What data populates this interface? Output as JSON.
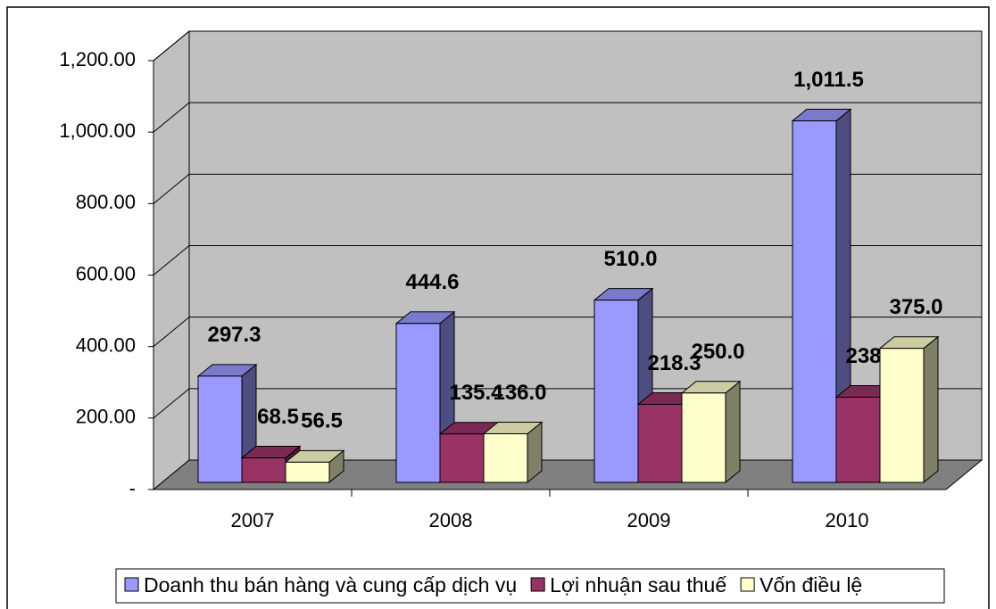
{
  "chart_data": {
    "type": "bar3d",
    "categories": [
      "2007",
      "2008",
      "2009",
      "2010"
    ],
    "series": [
      {
        "name": "Doanh thu bán hàng và cung cấp dịch vụ",
        "color": "#9999ff",
        "values": [
          297.3,
          444.6,
          510.0,
          1011.5
        ],
        "value_labels": [
          "297.3",
          "444.6",
          "510.0",
          "1,011.5"
        ]
      },
      {
        "name": "Lợi nhuận sau thuế",
        "color": "#993366",
        "values": [
          68.5,
          135.4,
          218.3,
          238.4
        ],
        "value_labels": [
          "68.5",
          "135.4",
          "218.3",
          "238.4"
        ]
      },
      {
        "name": "Vốn điều lệ",
        "color": "#ffffcc",
        "values": [
          56.5,
          136.0,
          250.0,
          375.0
        ],
        "value_labels": [
          "56.5",
          "136.0",
          "250.0",
          "375.0"
        ]
      }
    ],
    "ylim": [
      0,
      1200
    ],
    "yticks": [
      {
        "value": 0,
        "label": "-"
      },
      {
        "value": 200,
        "label": "200.00"
      },
      {
        "value": 400,
        "label": "400.00"
      },
      {
        "value": 600,
        "label": "600.00"
      },
      {
        "value": 800,
        "label": "800.00"
      },
      {
        "value": 1000,
        "label": "1,000.00"
      },
      {
        "value": 1200,
        "label": "1,200.00"
      }
    ],
    "grid": true
  }
}
